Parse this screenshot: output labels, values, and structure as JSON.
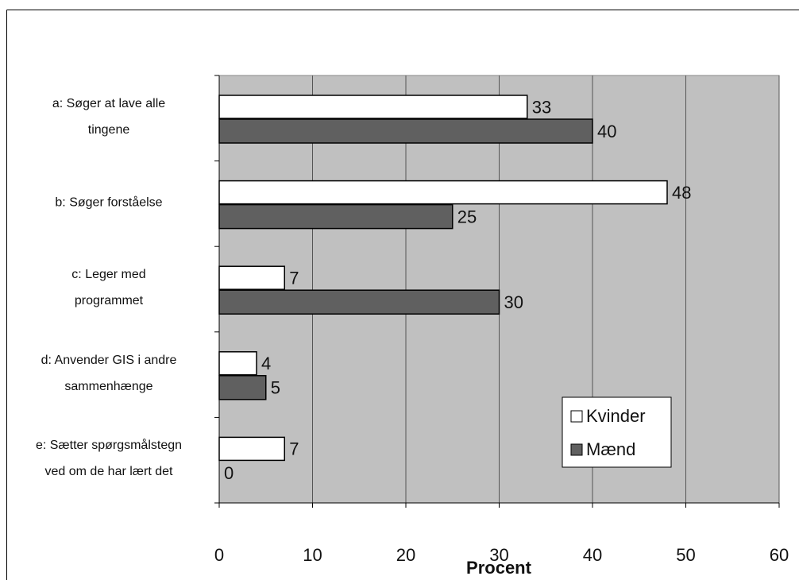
{
  "chart_data": {
    "type": "hbar",
    "categories": [
      "a: Søger at lave alle\ntingene",
      "b: Søger forståelse",
      "c: Leger med\nprogrammet",
      "d: Anvender GIS i andre\nsammenhænge",
      "e: Sætter spørgsmålstegn\nved om de har lært det"
    ],
    "series": [
      {
        "name": "Kvinder",
        "color": "#ffffff",
        "values": [
          33,
          48,
          7,
          4,
          7
        ]
      },
      {
        "name": "Mænd",
        "color": "#606060",
        "values": [
          40,
          25,
          30,
          5,
          0
        ]
      }
    ],
    "x_label": "Procent",
    "xlim": [
      0,
      60
    ],
    "xticks": [
      0,
      10,
      20,
      30,
      40,
      50,
      60
    ],
    "grid": true,
    "legend_position": "lower right",
    "plot_background": "#c0c0c0"
  }
}
